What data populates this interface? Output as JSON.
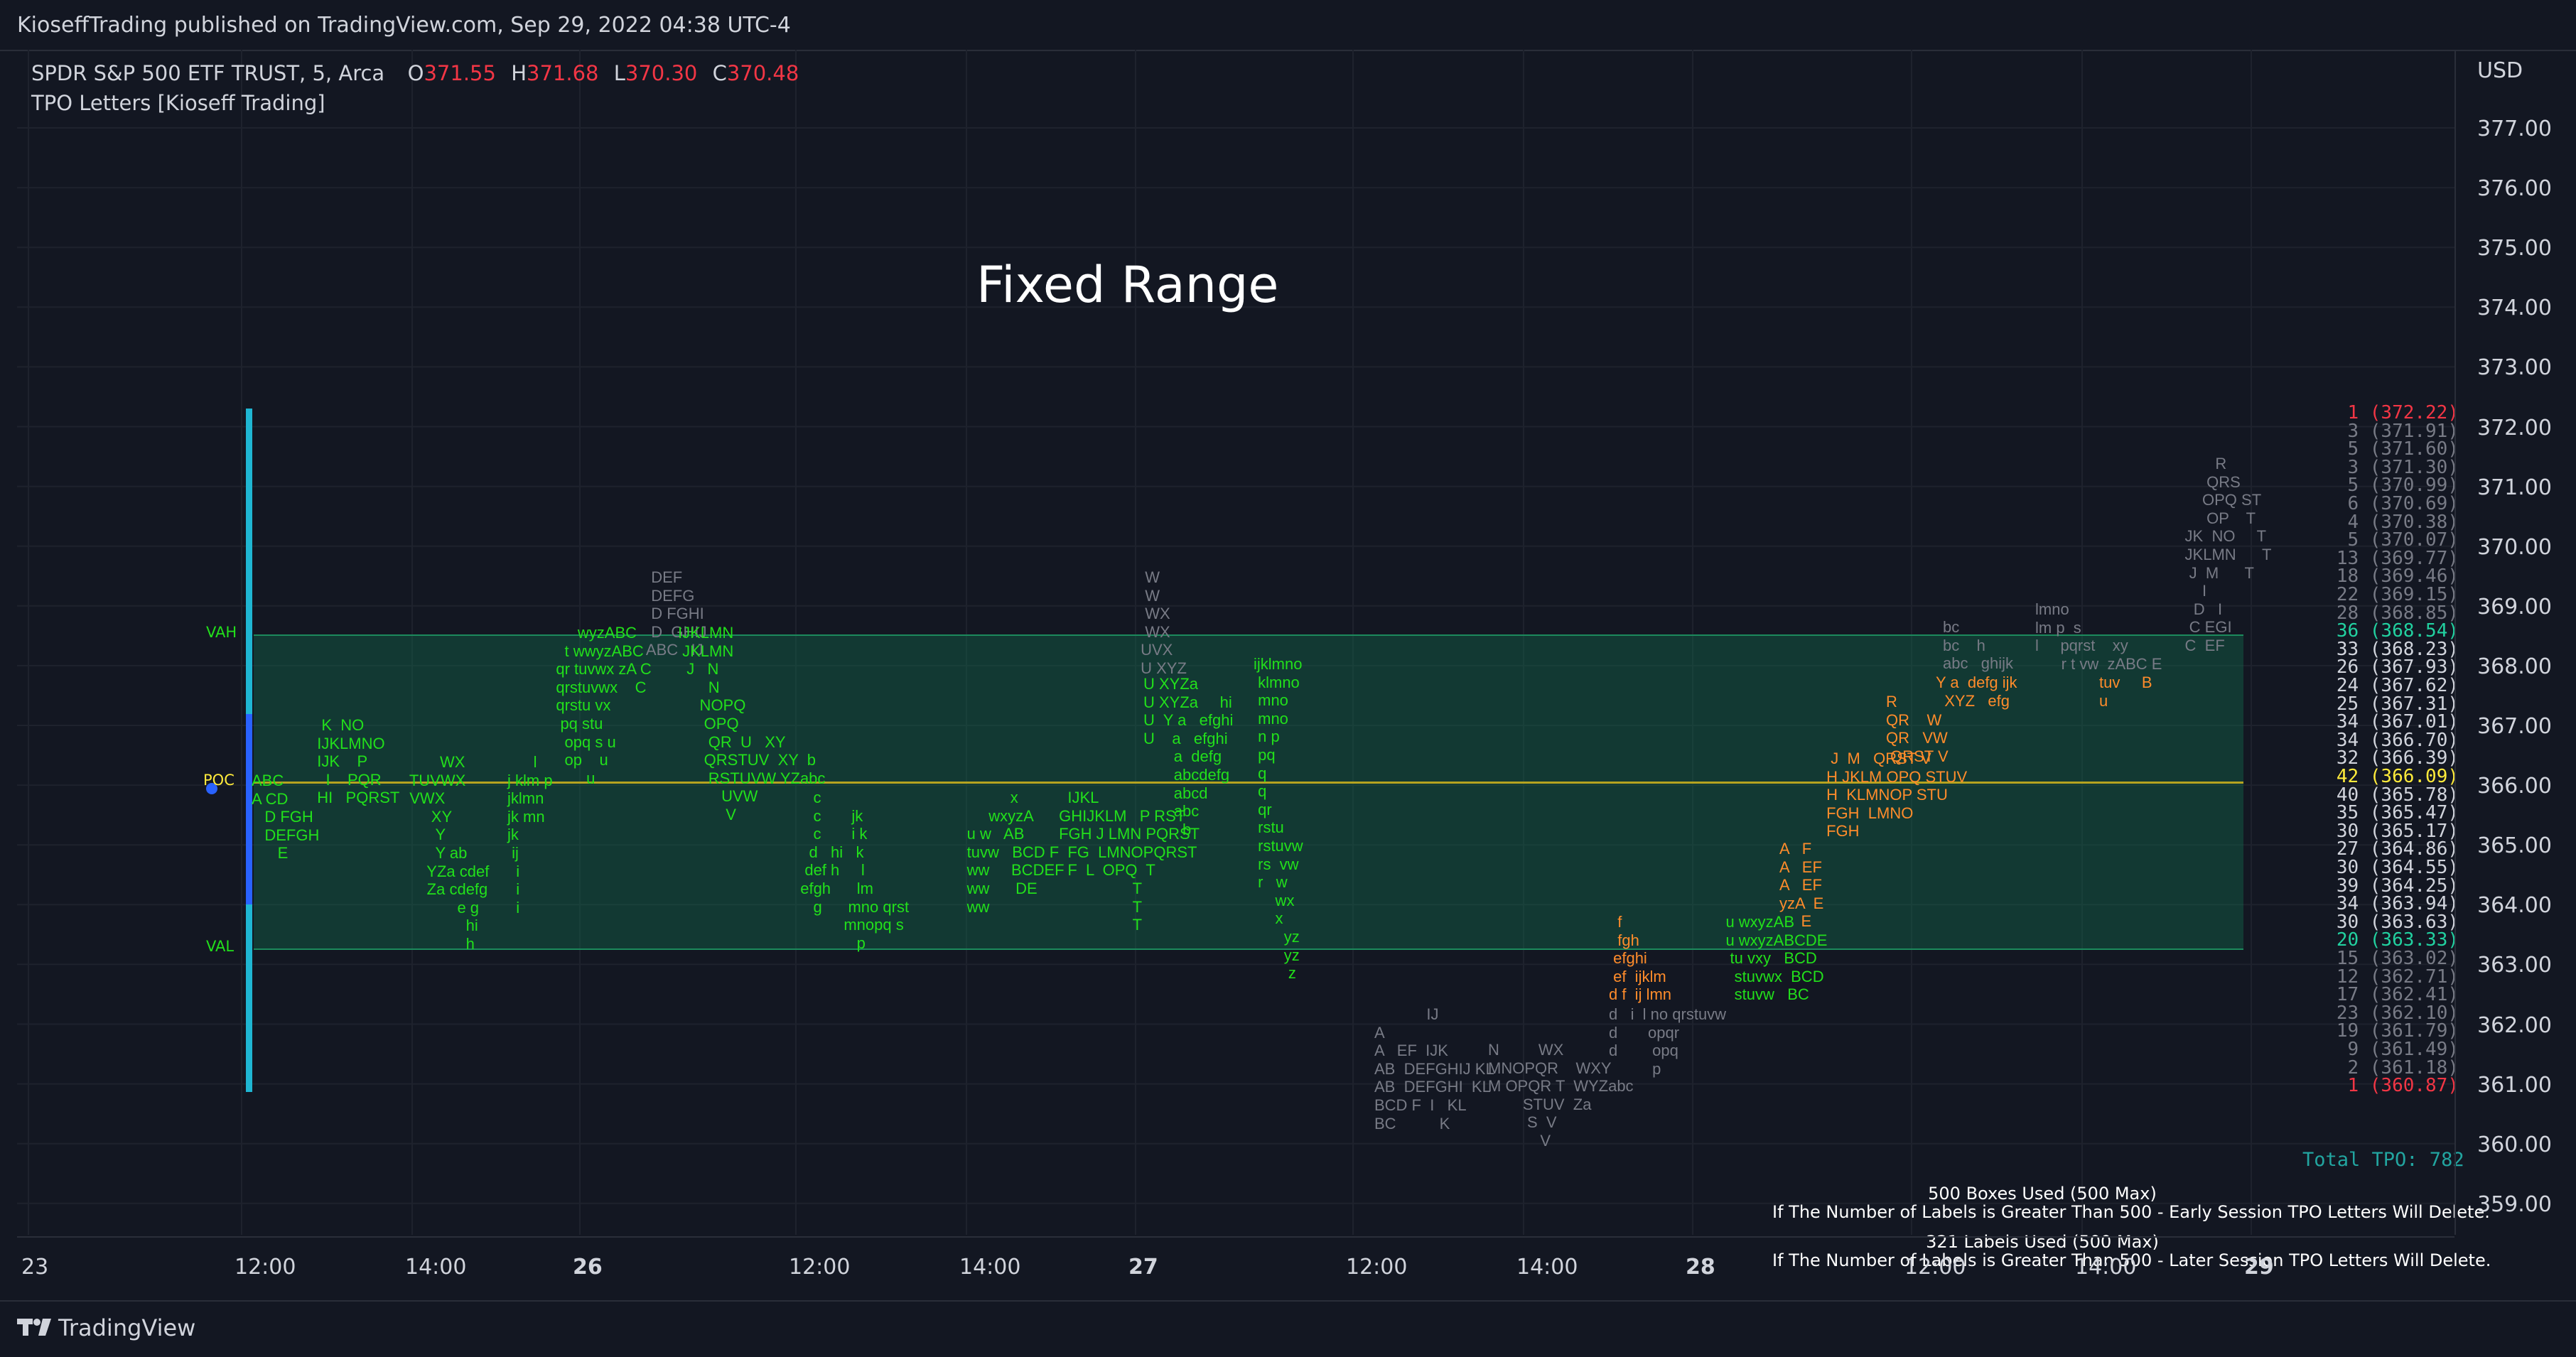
{
  "publish_line": "KioseffTrading published on TradingView.com, Sep 29, 2022 04:38 UTC-4",
  "symbol_line": {
    "name": "SPDR S&P 500 ETF TRUST, 5, Arca",
    "open_k": "O",
    "open_v": "371.55",
    "high_k": "H",
    "high_v": "371.68",
    "low_k": "L",
    "low_v": "370.30",
    "close_k": "C",
    "close_v": "370.48"
  },
  "indicator_name": "TPO Letters [Kioseff Trading]",
  "currency": "USD",
  "chart_title": "Fixed Range",
  "price_ticks": [
    "377.00",
    "376.00",
    "375.00",
    "374.00",
    "373.00",
    "372.00",
    "371.00",
    "370.00",
    "369.00",
    "368.00",
    "367.00",
    "366.00",
    "365.00",
    "364.00",
    "363.00",
    "362.00",
    "361.00",
    "360.00",
    "359.00"
  ],
  "time_ticks": [
    "23",
    "12:00",
    "14:00",
    "26",
    "12:00",
    "14:00",
    "27",
    "12:00",
    "14:00",
    "28",
    "12:00",
    "14:00",
    "29"
  ],
  "profile_labels": {
    "vah": "VAH",
    "poc": "POC",
    "val": "VAL"
  },
  "tpo_counts": [
    {
      "text": "1 (372.22)",
      "color": "#f23645"
    },
    {
      "text": "3 (371.91)",
      "color": "#787b86"
    },
    {
      "text": "5 (371.60)",
      "color": "#787b86"
    },
    {
      "text": "3 (371.30)",
      "color": "#787b86"
    },
    {
      "text": "5 (370.99)",
      "color": "#787b86"
    },
    {
      "text": "6 (370.69)",
      "color": "#787b86"
    },
    {
      "text": "4 (370.38)",
      "color": "#787b86"
    },
    {
      "text": "5 (370.07)",
      "color": "#787b86"
    },
    {
      "text": "13 (369.77)",
      "color": "#787b86"
    },
    {
      "text": "18 (369.46)",
      "color": "#787b86"
    },
    {
      "text": "22 (369.15)",
      "color": "#787b86"
    },
    {
      "text": "28 (368.85)",
      "color": "#787b86"
    },
    {
      "text": "36 (368.54)",
      "color": "#22d1a0"
    },
    {
      "text": "33 (368.23)",
      "color": "#d1d4dc"
    },
    {
      "text": "26 (367.93)",
      "color": "#d1d4dc"
    },
    {
      "text": "24 (367.62)",
      "color": "#d1d4dc"
    },
    {
      "text": "25 (367.31)",
      "color": "#d1d4dc"
    },
    {
      "text": "34 (367.01)",
      "color": "#d1d4dc"
    },
    {
      "text": "34 (366.70)",
      "color": "#d1d4dc"
    },
    {
      "text": "32 (366.39)",
      "color": "#d1d4dc"
    },
    {
      "text": "42 (366.09)",
      "color": "#ffeb3b"
    },
    {
      "text": "40 (365.78)",
      "color": "#d1d4dc"
    },
    {
      "text": "35 (365.47)",
      "color": "#d1d4dc"
    },
    {
      "text": "30 (365.17)",
      "color": "#d1d4dc"
    },
    {
      "text": "27 (364.86)",
      "color": "#d1d4dc"
    },
    {
      "text": "30 (364.55)",
      "color": "#d1d4dc"
    },
    {
      "text": "39 (364.25)",
      "color": "#d1d4dc"
    },
    {
      "text": "34 (363.94)",
      "color": "#d1d4dc"
    },
    {
      "text": "30 (363.63)",
      "color": "#d1d4dc"
    },
    {
      "text": "20 (363.33)",
      "color": "#22d1a0"
    },
    {
      "text": "15 (363.02)",
      "color": "#787b86"
    },
    {
      "text": "12 (362.71)",
      "color": "#787b86"
    },
    {
      "text": "17 (362.41)",
      "color": "#787b86"
    },
    {
      "text": "23 (362.10)",
      "color": "#787b86"
    },
    {
      "text": "19 (361.79)",
      "color": "#787b86"
    },
    {
      "text": "9 (361.49)",
      "color": "#787b86"
    },
    {
      "text": "2 (361.18)",
      "color": "#787b86"
    },
    {
      "text": "1 (360.87)",
      "color": "#f23645"
    }
  ],
  "total_tpo": "Total TPO: 782",
  "notes": {
    "boxes_used": "500 Boxes Used (500 Max)",
    "boxes_warning": "If The Number of Labels is Greater Than 500 - Early Session TPO Letters Will Delete.",
    "labels_used": "321 Labels Used (500 Max)",
    "labels_warning": "If The Number of Labels is Greater Than 500 - Later Session TPO Letters Will Delete."
  },
  "brand": "TradingView",
  "icons": {
    "logo": "tradingview-logo-icon"
  },
  "colors": {
    "tpo_value_area": "#22e01b",
    "tpo_outside": "#787b86",
    "tpo_late": "#ff8c2b",
    "tpo_poc": "#ffeb3b",
    "value_area_fill": "#0f6e4a",
    "profile_bar": "#1fb6d3",
    "poc_bar": "#2962ff"
  },
  "tpo_columns": [
    {
      "label_id": "col-1",
      "lines": [
        "ABC",
        "A CD",
        "  D FGH",
        "  DEFGH",
        "    E"
      ],
      "top_row": "366.09",
      "color": "green"
    },
    {
      "label_id": "col-2",
      "lines": [
        "  K  NO",
        "  IJKLMNO",
        "  IJK    P",
        "    I    PQR",
        "  HI   PQRST",
        "  "
      ],
      "top_row": "367.01",
      "color": "green"
    },
    {
      "label_id": "col-3",
      "lines": [
        "       WX",
        "  TUVWX",
        "  VWX",
        "     XY",
        "      Y",
        "      Y ab",
        "    YZa  cdef",
        "    Za cdefg",
        "          e g",
        "             hi",
        "               h"
      ],
      "top_row": "366.39",
      "color": "green"
    }
  ]
}
